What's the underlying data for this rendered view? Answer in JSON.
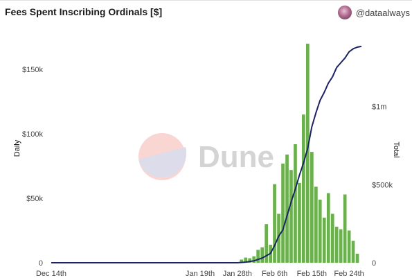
{
  "header": {
    "title": "Fees Spent Inscribing Ordinals [$]",
    "author": "@dataalways"
  },
  "watermark": {
    "text": "Dune"
  },
  "colors": {
    "bar": "#6ab04c",
    "line": "#1d2266",
    "watermark_top": "#f9d6d2",
    "watermark_bottom": "#dcdcea"
  },
  "chart_data": {
    "type": "bar+line",
    "title": "Fees Spent Inscribing Ordinals [$]",
    "x_ticks": [
      "Dec 14th",
      "Jan 19th",
      "Jan 28th",
      "Feb 6th",
      "Feb 15th",
      "Feb 24th"
    ],
    "left_axis": {
      "label": "Daily",
      "ticks": [
        "0",
        "$50k",
        "$100k",
        "$150k"
      ],
      "ylim": [
        0,
        177000
      ]
    },
    "right_axis": {
      "label": "Total",
      "ticks": [
        "0",
        "$500k",
        "$1m"
      ],
      "ylim": [
        0,
        1460000
      ]
    },
    "grid": false,
    "daily_bars": [
      {
        "date": "2023-01-24",
        "value": 0
      },
      {
        "date": "2023-01-25",
        "value": 0
      },
      {
        "date": "2023-01-26",
        "value": 0
      },
      {
        "date": "2023-01-27",
        "value": 0
      },
      {
        "date": "2023-01-28",
        "value": 0
      },
      {
        "date": "2023-01-29",
        "value": 2500
      },
      {
        "date": "2023-01-30",
        "value": 4000
      },
      {
        "date": "2023-01-31",
        "value": 3500
      },
      {
        "date": "2023-02-01",
        "value": 5000
      },
      {
        "date": "2023-02-02",
        "value": 10000
      },
      {
        "date": "2023-02-03",
        "value": 12000
      },
      {
        "date": "2023-02-04",
        "value": 30000
      },
      {
        "date": "2023-02-05",
        "value": 14000
      },
      {
        "date": "2023-02-06",
        "value": 61000
      },
      {
        "date": "2023-02-07",
        "value": 38000
      },
      {
        "date": "2023-02-08",
        "value": 77000
      },
      {
        "date": "2023-02-09",
        "value": 84000
      },
      {
        "date": "2023-02-10",
        "value": 72000
      },
      {
        "date": "2023-02-11",
        "value": 92000
      },
      {
        "date": "2023-02-12",
        "value": 62000
      },
      {
        "date": "2023-02-13",
        "value": 115000
      },
      {
        "date": "2023-02-14",
        "value": 170000
      },
      {
        "date": "2023-02-15",
        "value": 86000
      },
      {
        "date": "2023-02-16",
        "value": 59000
      },
      {
        "date": "2023-02-17",
        "value": 49000
      },
      {
        "date": "2023-02-18",
        "value": 35000
      },
      {
        "date": "2023-02-19",
        "value": 54000
      },
      {
        "date": "2023-02-20",
        "value": 38000
      },
      {
        "date": "2023-02-21",
        "value": 28000
      },
      {
        "date": "2023-02-22",
        "value": 26000
      },
      {
        "date": "2023-02-23",
        "value": 53000
      },
      {
        "date": "2023-02-24",
        "value": 25000
      },
      {
        "date": "2023-02-25",
        "value": 17000
      },
      {
        "date": "2023-02-26",
        "value": 7000
      }
    ],
    "total_line": [
      {
        "date": "2022-12-14",
        "value": 0
      },
      {
        "date": "2023-01-28",
        "value": 0
      },
      {
        "date": "2023-01-30",
        "value": 4000
      },
      {
        "date": "2023-02-01",
        "value": 12000
      },
      {
        "date": "2023-02-03",
        "value": 30000
      },
      {
        "date": "2023-02-05",
        "value": 60000
      },
      {
        "date": "2023-02-06",
        "value": 110000
      },
      {
        "date": "2023-02-07",
        "value": 170000
      },
      {
        "date": "2023-02-08",
        "value": 210000
      },
      {
        "date": "2023-02-09",
        "value": 300000
      },
      {
        "date": "2023-02-10",
        "value": 390000
      },
      {
        "date": "2023-02-11",
        "value": 470000
      },
      {
        "date": "2023-02-12",
        "value": 560000
      },
      {
        "date": "2023-02-13",
        "value": 640000
      },
      {
        "date": "2023-02-14",
        "value": 730000
      },
      {
        "date": "2023-02-15",
        "value": 870000
      },
      {
        "date": "2023-02-16",
        "value": 960000
      },
      {
        "date": "2023-02-17",
        "value": 1040000
      },
      {
        "date": "2023-02-18",
        "value": 1090000
      },
      {
        "date": "2023-02-19",
        "value": 1150000
      },
      {
        "date": "2023-02-20",
        "value": 1190000
      },
      {
        "date": "2023-02-21",
        "value": 1250000
      },
      {
        "date": "2023-02-22",
        "value": 1280000
      },
      {
        "date": "2023-02-23",
        "value": 1310000
      },
      {
        "date": "2023-02-24",
        "value": 1350000
      },
      {
        "date": "2023-02-25",
        "value": 1370000
      },
      {
        "date": "2023-02-26",
        "value": 1380000
      },
      {
        "date": "2023-02-27",
        "value": 1385000
      }
    ]
  }
}
